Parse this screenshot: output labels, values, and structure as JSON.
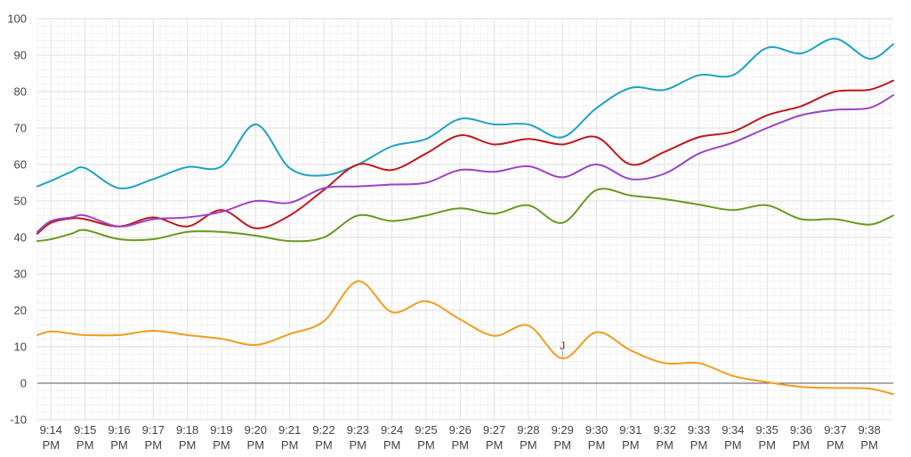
{
  "chart_data": {
    "type": "line",
    "title": "",
    "xlabel": "",
    "ylabel": "",
    "ylim": [
      -10,
      100
    ],
    "yticks": [
      -10,
      0,
      10,
      20,
      30,
      40,
      50,
      60,
      70,
      80,
      90,
      100
    ],
    "grid": true,
    "minor_grid": true,
    "categories": [
      "9:14 PM",
      "9:15 PM",
      "9:16 PM",
      "9:17 PM",
      "9:18 PM",
      "9:19 PM",
      "9:20 PM",
      "9:21 PM",
      "9:22 PM",
      "9:23 PM",
      "9:24 PM",
      "9:25 PM",
      "9:26 PM",
      "9:27 PM",
      "9:28 PM",
      "9:29 PM",
      "9:30 PM",
      "9:31 PM",
      "9:32 PM",
      "9:33 PM",
      "9:34 PM",
      "9:35 PM",
      "9:36 PM",
      "9:37 PM",
      "9:38 PM"
    ],
    "x": [
      "9:13.6 PM",
      "9:14 PM",
      "9:14.6 PM",
      "9:15 PM",
      "9:16 PM",
      "9:17 PM",
      "9:18 PM",
      "9:19 PM",
      "9:20 PM",
      "9:21 PM",
      "9:22 PM",
      "9:23 PM",
      "9:24 PM",
      "9:25 PM",
      "9:26 PM",
      "9:27 PM",
      "9:28 PM",
      "9:29 PM",
      "9:30 PM",
      "9:31 PM",
      "9:32 PM",
      "9:33 PM",
      "9:34 PM",
      "9:35 PM",
      "9:36 PM",
      "9:37 PM",
      "9:38 PM",
      "9:38.7 PM"
    ],
    "xnum": [
      13.6,
      14,
      14.6,
      15,
      16,
      17,
      18,
      19,
      20,
      21,
      22,
      23,
      24,
      25,
      26,
      27,
      28,
      29,
      30,
      31,
      32,
      33,
      34,
      35,
      36,
      37,
      38,
      38.7
    ],
    "series": [
      {
        "name": "",
        "color": "#1fa2c8",
        "values": [
          54,
          55.5,
          58,
          59,
          53.5,
          56,
          59.3,
          59.5,
          71,
          59,
          57,
          60,
          65,
          67,
          72.5,
          71,
          71,
          67.5,
          75.5,
          81,
          80.5,
          84.5,
          84.5,
          92,
          90.5,
          94.5,
          89,
          93
        ]
      },
      {
        "name": "",
        "color": "#c2171c",
        "values": [
          41,
          44,
          45.2,
          45,
          43,
          45.5,
          43,
          47.5,
          42.5,
          46,
          53,
          60,
          58.5,
          63,
          68,
          65.5,
          67,
          65.5,
          67.5,
          60,
          63.5,
          67.5,
          69,
          73.5,
          76,
          80,
          80.5,
          83
        ]
      },
      {
        "name": "",
        "color": "#9b44c9",
        "values": [
          41.5,
          44.5,
          45.5,
          46,
          43,
          45,
          45.5,
          47,
          50,
          49.5,
          53.5,
          54,
          54.5,
          55,
          58.5,
          58,
          59.5,
          56.5,
          60,
          56,
          57.5,
          63,
          66,
          70,
          73.5,
          75,
          75.5,
          79
        ]
      },
      {
        "name": "",
        "color": "#6a9a1f",
        "values": [
          39,
          39.5,
          41,
          42,
          39.5,
          39.5,
          41.5,
          41.5,
          40.5,
          39,
          40,
          46,
          44.5,
          46,
          48,
          46.5,
          48.8,
          44,
          53,
          51.5,
          50.5,
          49,
          47.5,
          48.8,
          45,
          45,
          43.5,
          46
        ]
      },
      {
        "name": "",
        "color": "#f39c1f",
        "values": [
          13.2,
          14.2,
          13.6,
          13.2,
          13.2,
          14.4,
          13.2,
          12.2,
          10.5,
          13.5,
          17,
          28,
          19.5,
          22.5,
          17.5,
          13,
          15.8,
          6.8,
          14,
          9,
          5.5,
          5.5,
          2,
          0.3,
          -1,
          -1.3,
          -1.5,
          -3
        ]
      }
    ],
    "annotations": [
      {
        "label": "J",
        "x": 29,
        "y": 9,
        "color": "#7a1a1a"
      }
    ]
  }
}
